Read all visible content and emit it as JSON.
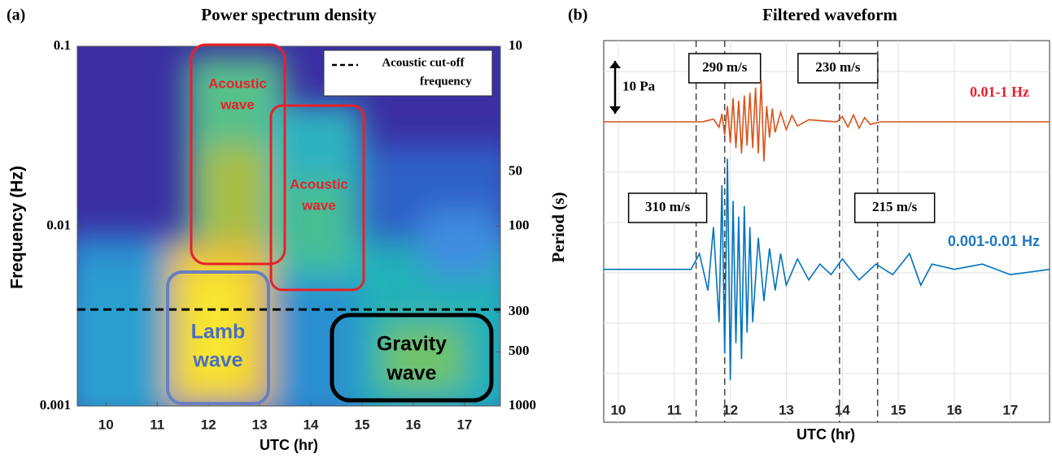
{
  "chart_data": [
    {
      "type": "spectrogram",
      "panel": "(a)",
      "title": "Power spectrum density",
      "xlabel": "UTC (hr)",
      "ylabel": "Frequency (Hz)",
      "y2label": "Period (s)",
      "xlim": [
        9.44,
        17.7
      ],
      "xticks": [
        10,
        11,
        12,
        13,
        14,
        15,
        16,
        17
      ],
      "ylim": [
        0.001,
        0.1
      ],
      "yscale": "log",
      "yticks": [
        0.001,
        0.01,
        0.1
      ],
      "y2ticks": [
        10,
        50,
        100,
        300,
        500,
        1000
      ],
      "cutoff": {
        "value": 0.00344,
        "label": [
          "Acoustic cut-off",
          "frequency"
        ]
      },
      "annotations": [
        [
          "Acoustic",
          "wave"
        ],
        [
          "Acoustic",
          "wave"
        ],
        [
          "Lamb",
          "wave"
        ],
        [
          "Gravity",
          "wave"
        ]
      ]
    },
    {
      "type": "line",
      "panel": "(b)",
      "title": "Filtered waveform",
      "xlabel": "UTC (hr)",
      "xlim": [
        9.74,
        17.7
      ],
      "xticks": [
        10,
        11,
        12,
        13,
        14,
        15,
        16,
        17
      ],
      "ylim": [
        -57,
        15.4
      ],
      "grid": true,
      "scale_bar": {
        "value": 10,
        "label": "10 Pa"
      },
      "arrivals": [
        {
          "x": 11.39,
          "label": "310 m/s"
        },
        {
          "x": 11.9,
          "label": "290 m/s"
        },
        {
          "x": 13.95,
          "label": "230 m/s"
        },
        {
          "x": 14.63,
          "label": "215 m/s"
        }
      ],
      "series": [
        {
          "name": "0.01-1 Hz",
          "color": "#d95319",
          "label_color": "#e8202a",
          "x": [
            9.74,
            11.5,
            11.7,
            11.8,
            11.85,
            11.9,
            11.95,
            12.0,
            12.05,
            12.1,
            12.15,
            12.2,
            12.25,
            12.3,
            12.35,
            12.4,
            12.45,
            12.5,
            12.55,
            12.6,
            12.65,
            12.7,
            12.75,
            12.8,
            12.9,
            13.0,
            13.1,
            13.2,
            13.4,
            13.9,
            14.0,
            14.1,
            14.2,
            14.3,
            14.4,
            14.5,
            14.7,
            17.7
          ],
          "values": [
            0,
            0,
            0.5,
            -1,
            1.5,
            -2.5,
            3,
            -4,
            4.5,
            -5,
            4,
            -6,
            5,
            -4.5,
            5.5,
            -5,
            6.5,
            -6,
            8,
            -7.5,
            3,
            -3,
            2.5,
            -2,
            1.8,
            -1.5,
            1.2,
            -0.8,
            0.4,
            0,
            1,
            -1,
            1.3,
            -1.2,
            0.8,
            -0.5,
            0,
            0
          ]
        },
        {
          "name": "0.001-0.01 Hz",
          "color": "#0072bd",
          "label_color": "#1f77c0",
          "x": [
            9.74,
            10.5,
            11.3,
            11.45,
            11.6,
            11.7,
            11.8,
            11.85,
            11.9,
            11.95,
            12.0,
            12.05,
            12.1,
            12.15,
            12.2,
            12.25,
            12.3,
            12.35,
            12.4,
            12.5,
            12.6,
            12.7,
            12.8,
            12.9,
            13.0,
            13.2,
            13.4,
            13.6,
            13.8,
            14.0,
            14.3,
            14.6,
            14.9,
            15.2,
            15.4,
            15.6,
            16.0,
            16.5,
            17.0,
            17.7
          ],
          "values": [
            -28,
            -28,
            -28,
            -25,
            -32,
            -20,
            -38,
            -12,
            -44,
            -7,
            -49,
            -15,
            -42,
            -18,
            -45,
            -16,
            -40,
            -20,
            -38,
            -22,
            -34,
            -24,
            -32,
            -25,
            -31,
            -26,
            -30,
            -27,
            -29,
            -26,
            -30,
            -27,
            -29,
            -25,
            -31,
            -27,
            -28,
            -27,
            -29,
            -28
          ]
        }
      ]
    }
  ]
}
